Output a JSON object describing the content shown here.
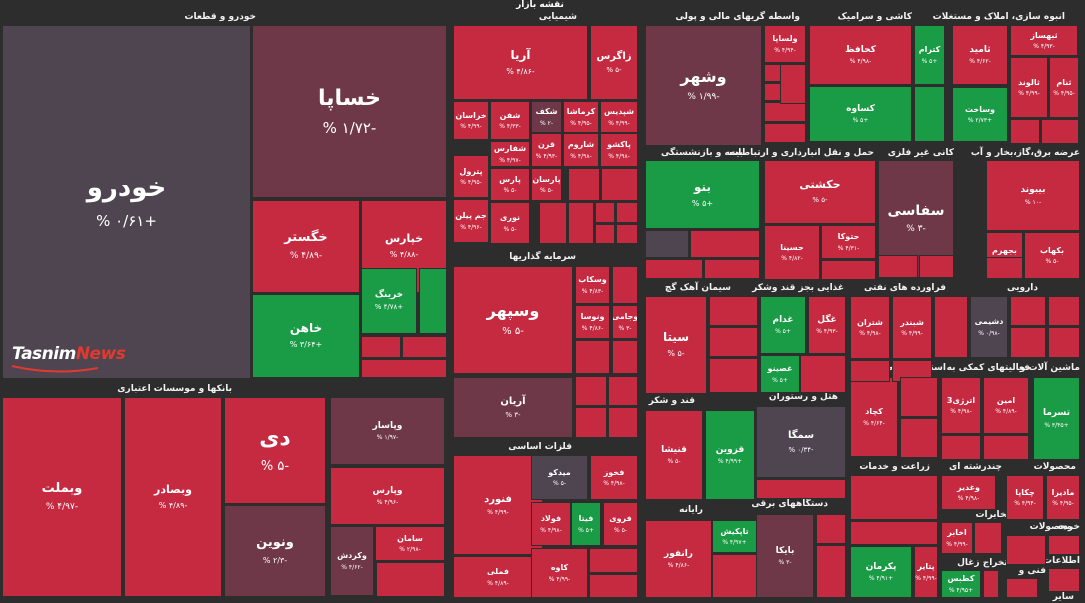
{
  "page_title": "نقشه بازار",
  "colors": {
    "dark_red": "#6e3848",
    "red": "#c52a41",
    "green": "#1a9c46",
    "neutral": "#4e4550",
    "background": "#2d2d2d"
  },
  "watermark": {
    "part1": "Tasnim",
    "part2": "News"
  },
  "sectors": [
    {
      "label": "خودرو و قطعات"
    },
    {
      "label": "شیمیایی"
    },
    {
      "label": "واسطه گریهای مالی و پولی"
    },
    {
      "label": "کاشی و سرامیک"
    },
    {
      "label": "انبوه سازی، املاک و مستغلات"
    },
    {
      "label": "بیمه و بازنشستگی"
    },
    {
      "label": "حمل و نقل انبارداری و ارتباطات"
    },
    {
      "label": "کانی غیر فلزی"
    },
    {
      "label": "عرضه برق،گاز،بخار و آب"
    },
    {
      "label": "سرمایه گذاریها"
    },
    {
      "label": "سیمان آهک گچ"
    },
    {
      "label": "قند و شکر"
    },
    {
      "label": "غذایی بجز قند وشکر"
    },
    {
      "label": "فراورده های نفتی"
    },
    {
      "label": "دارویی"
    },
    {
      "label": "بانکها و موسسات اعتباری"
    },
    {
      "label": "هتل و رستوران"
    },
    {
      "label": "استخراج کانه های"
    },
    {
      "label": "فعالیتهای کمکی به"
    },
    {
      "label": "ماشین آلات و"
    },
    {
      "label": "فلزات اساسی"
    },
    {
      "label": "رایانه"
    },
    {
      "label": "دستگاههای برقی"
    },
    {
      "label": "زراعت و خدمات"
    },
    {
      "label": "چندرشته ای"
    },
    {
      "label": "محصولات"
    },
    {
      "label": "مخابرات"
    },
    {
      "label": "لاستیک و پلاستیک"
    },
    {
      "label": "استخراج زغال"
    },
    {
      "label": "محصولات"
    },
    {
      "label": "خرده"
    },
    {
      "label": "فنی و"
    },
    {
      "label": "اطلاعات"
    },
    {
      "label": "سایر"
    }
  ],
  "tiles": [
    {
      "name": "خودرو",
      "change": "% ۰/۶۱+"
    },
    {
      "name": "خساپا",
      "change": "% ۱/۷۲-"
    },
    {
      "name": "خگستر",
      "change": "% ۴/۸۹-"
    },
    {
      "name": "خپارس",
      "change": "% ۴/۸۸-"
    },
    {
      "name": "خاهن",
      "change": "% ۳/۶۴+"
    },
    {
      "name": "خرینگ",
      "change": "% ۴/۷۸+"
    },
    {
      "name": "آریا",
      "change": "% ۴/۸۶-"
    },
    {
      "name": "زاگرس",
      "change": "% ۵-"
    },
    {
      "name": "خراسان",
      "change": "% ۴/۹۹-"
    },
    {
      "name": "شفن",
      "change": "% ۴/۳۳-"
    },
    {
      "name": "شکف",
      "change": "% ۲-"
    },
    {
      "name": "کرماشا",
      "change": "% ۴/۹۵-"
    },
    {
      "name": "شپدیس",
      "change": "% ۴/۹۹-"
    },
    {
      "name": "شفارس",
      "change": "% ۴/۹۷-"
    },
    {
      "name": "قرن",
      "change": "% ۴/۹۳-"
    },
    {
      "name": "شاروم",
      "change": "% ۴/۹۸-"
    },
    {
      "name": "پاکشو",
      "change": "% ۴/۹۸-"
    },
    {
      "name": "پترول",
      "change": "% ۴/۹۵-"
    },
    {
      "name": "پارس",
      "change": "% ۵-"
    },
    {
      "name": "پارسان",
      "change": "% ۵-"
    },
    {
      "name": "جم پیلن",
      "change": "% ۴/۹۶-"
    },
    {
      "name": "نوری",
      "change": "% ۵-"
    },
    {
      "name": "وشهر",
      "change": "% ۱/۹۹-"
    },
    {
      "name": "ولساپا",
      "change": "% ۴/۹۴-"
    },
    {
      "name": "کحافظ",
      "change": "% ۴/۹۸-"
    },
    {
      "name": "کترام",
      "change": "% ۵+"
    },
    {
      "name": "کساوه",
      "change": "% ۵+"
    },
    {
      "name": "ثامید",
      "change": "% ۴/۶۲-"
    },
    {
      "name": "ثبهساز",
      "change": "% ۴/۹۳-"
    },
    {
      "name": "ثالوند",
      "change": "% ۴/۹۹-"
    },
    {
      "name": "ثنام",
      "change": "% ۴/۹۵-"
    },
    {
      "name": "وساخت",
      "change": "% ۲/۷۳+"
    },
    {
      "name": "بنو",
      "change": "% ۵+"
    },
    {
      "name": "حکشتی",
      "change": "% ۵-"
    },
    {
      "name": "حسینا",
      "change": "% ۴/۸۲-"
    },
    {
      "name": "حتوکا",
      "change": "% ۴/۳۱-"
    },
    {
      "name": "سفاسی",
      "change": "% ۳-"
    },
    {
      "name": "بیبوند",
      "change": "% ۱۰-"
    },
    {
      "name": "بجهرم",
      "change": "% ۴/۹۹-"
    },
    {
      "name": "بکهاب",
      "change": "% ۵-"
    },
    {
      "name": "وسپهر",
      "change": "% ۵-"
    },
    {
      "name": "وسکاب",
      "change": "% ۴/۸۳-"
    },
    {
      "name": "ونوسا",
      "change": "% ۴/۸۶-"
    },
    {
      "name": "وجامی",
      "change": "% ۳-"
    },
    {
      "name": "آریان",
      "change": "% ۳-"
    },
    {
      "name": "سیتا",
      "change": "% ۵-"
    },
    {
      "name": "غدام",
      "change": "% ۵+"
    },
    {
      "name": "غگل",
      "change": "% ۴/۹۳-"
    },
    {
      "name": "غصینو",
      "change": "% ۵+"
    },
    {
      "name": "شتران",
      "change": "% ۴/۹۸-"
    },
    {
      "name": "شبندر",
      "change": "% ۴/۹۹-"
    },
    {
      "name": "دشیمی",
      "change": "% ۰/۹۸-"
    },
    {
      "name": "وبملت",
      "change": "% ۴/۹۷-"
    },
    {
      "name": "وبصادر",
      "change": "% ۴/۸۹-"
    },
    {
      "name": "دی",
      "change": "% ۵-"
    },
    {
      "name": "ونوین",
      "change": "% ۲/۳-"
    },
    {
      "name": "وپاسار",
      "change": "% ۱/۹۷-"
    },
    {
      "name": "وپارس",
      "change": "% ۴/۹۶-"
    },
    {
      "name": "سامان",
      "change": "% ۲/۹۸-"
    },
    {
      "name": "وکردش",
      "change": "% ۴/۶۲-"
    },
    {
      "name": "قنیشا",
      "change": "% ۵-"
    },
    {
      "name": "قزوین",
      "change": "% ۴/۹۹+"
    },
    {
      "name": "سمگا",
      "change": "% ۰/۳۴-"
    },
    {
      "name": "کچاد",
      "change": "% ۴/۶۴-"
    },
    {
      "name": "اترژی3",
      "change": "% ۴/۹۸-"
    },
    {
      "name": "امین",
      "change": "% ۴/۸۹-"
    },
    {
      "name": "تسرما",
      "change": "% ۳/۴۵+"
    },
    {
      "name": "فنورد",
      "change": "% ۴/۹۹-"
    },
    {
      "name": "میدکو",
      "change": "% ۵-"
    },
    {
      "name": "فخوز",
      "change": "% ۴/۹۸-"
    },
    {
      "name": "فولاد",
      "change": "% ۴/۹۸-"
    },
    {
      "name": "فیتا",
      "change": "% ۵+"
    },
    {
      "name": "فروی",
      "change": "% ۵-"
    },
    {
      "name": "فملی",
      "change": "% ۴/۸۹-"
    },
    {
      "name": "کاوه",
      "change": "% ۴/۹۹-"
    },
    {
      "name": "رانفور",
      "change": "% ۴/۸۶-"
    },
    {
      "name": "تاپکیش",
      "change": "% ۴/۹۷+"
    },
    {
      "name": "بایکا",
      "change": "% ۳-"
    },
    {
      "name": "پکرمان",
      "change": "% ۴/۹۱+"
    },
    {
      "name": "پتایر",
      "change": "% ۴/۹۹-"
    },
    {
      "name": "وغدیر",
      "change": "% ۴/۹۸-"
    },
    {
      "name": "اخابر",
      "change": "% ۴/۹۹-"
    },
    {
      "name": "کطبس",
      "change": "% ۴/۹۵+"
    },
    {
      "name": "چکاپا",
      "change": "% ۴/۹۴-"
    },
    {
      "name": "مادیرا",
      "change": "% ۴/۹۵-"
    }
  ]
}
